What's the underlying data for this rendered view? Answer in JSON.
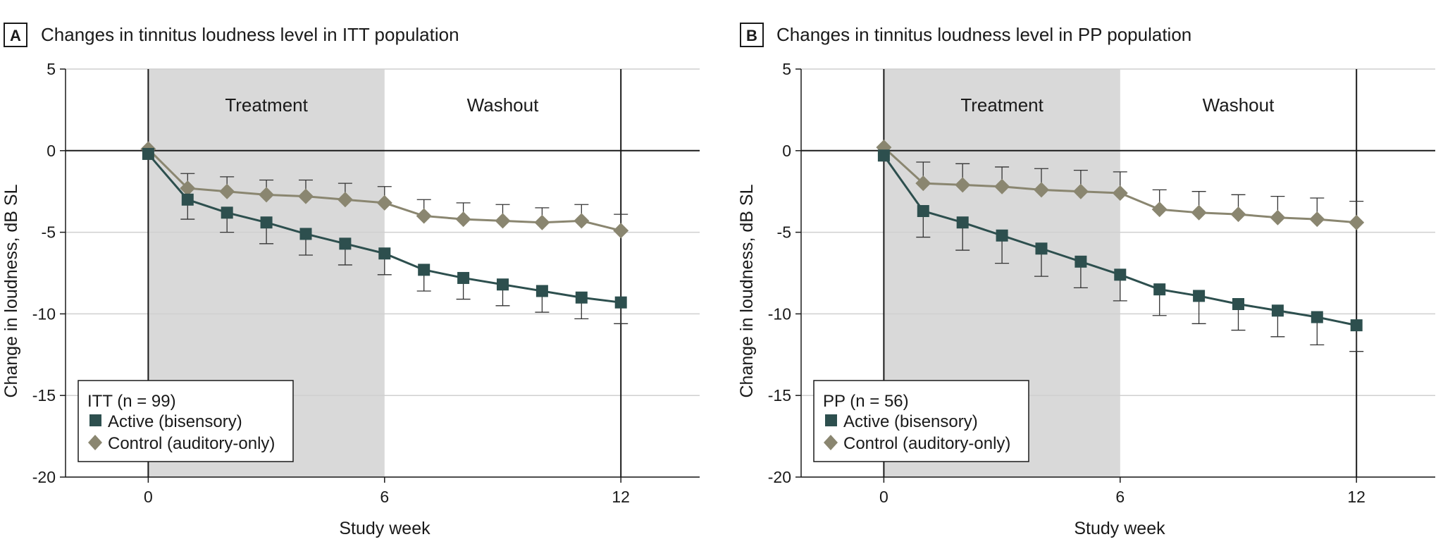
{
  "colors": {
    "active": "#2d4f4e",
    "control": "#8a8670",
    "shade": "#d9d9d9",
    "grid": "#cfcfcf",
    "axis": "#1a1a1a"
  },
  "chart_data": [
    {
      "type": "line",
      "panel_letter": "A",
      "title": "Changes in tinnitus loudness level in ITT population",
      "xlabel": "Study week",
      "ylabel": "Change in loudness, dB SL",
      "xlim": [
        -2.1,
        14
      ],
      "ylim": [
        -20,
        5
      ],
      "xticks": [
        0,
        6,
        12
      ],
      "yticks": [
        5,
        0,
        -5,
        -10,
        -15,
        -20
      ],
      "ytick_labels": [
        "5",
        "0",
        "-5",
        "-10",
        "-15",
        "-20"
      ],
      "regions": [
        {
          "label": "Treatment",
          "x_start": 0,
          "x_end": 6,
          "shaded": true
        },
        {
          "label": "Washout",
          "x_start": 6,
          "x_end": 12,
          "shaded": false
        }
      ],
      "legend": {
        "title": "ITT (n = 99)",
        "position": "bottom-left"
      },
      "series": [
        {
          "name": "Active (bisensory)",
          "marker": "square",
          "x": [
            0,
            1,
            2,
            3,
            4,
            5,
            6,
            7,
            8,
            9,
            10,
            11,
            12
          ],
          "values": [
            -0.2,
            -3.0,
            -3.8,
            -4.4,
            -5.1,
            -5.7,
            -6.3,
            -7.3,
            -7.8,
            -8.2,
            -8.6,
            -9.0,
            -9.3
          ],
          "error_low": [
            null,
            -4.2,
            -5.0,
            -5.7,
            -6.4,
            -7.0,
            -7.6,
            -8.6,
            -9.1,
            -9.5,
            -9.9,
            -10.3,
            -10.6
          ]
        },
        {
          "name": "Control (auditory-only)",
          "marker": "diamond",
          "x": [
            0,
            1,
            2,
            3,
            4,
            5,
            6,
            7,
            8,
            9,
            10,
            11,
            12
          ],
          "values": [
            0.1,
            -2.3,
            -2.5,
            -2.7,
            -2.8,
            -3.0,
            -3.2,
            -4.0,
            -4.2,
            -4.3,
            -4.4,
            -4.3,
            -4.9
          ],
          "error_high": [
            null,
            -1.4,
            -1.6,
            -1.8,
            -1.8,
            -2.0,
            -2.2,
            -3.0,
            -3.2,
            -3.3,
            -3.5,
            -3.3,
            -3.9
          ]
        }
      ]
    },
    {
      "type": "line",
      "panel_letter": "B",
      "title": "Changes in tinnitus loudness level in PP population",
      "xlabel": "Study week",
      "ylabel": "Change in loudness, dB SL",
      "xlim": [
        -2.1,
        14
      ],
      "ylim": [
        -20,
        5
      ],
      "xticks": [
        0,
        6,
        12
      ],
      "yticks": [
        5,
        0,
        -5,
        -10,
        -15,
        -20
      ],
      "ytick_labels": [
        "5",
        "0",
        "-5",
        "-10",
        "-15",
        "-20"
      ],
      "regions": [
        {
          "label": "Treatment",
          "x_start": 0,
          "x_end": 6,
          "shaded": true
        },
        {
          "label": "Washout",
          "x_start": 6,
          "x_end": 12,
          "shaded": false
        }
      ],
      "legend": {
        "title": "PP (n = 56)",
        "position": "bottom-left"
      },
      "series": [
        {
          "name": "Active (bisensory)",
          "marker": "square",
          "x": [
            0,
            1,
            2,
            3,
            4,
            5,
            6,
            7,
            8,
            9,
            10,
            11,
            12
          ],
          "values": [
            -0.3,
            -3.7,
            -4.4,
            -5.2,
            -6.0,
            -6.8,
            -7.6,
            -8.5,
            -8.9,
            -9.4,
            -9.8,
            -10.2,
            -10.7
          ],
          "error_low": [
            null,
            -5.3,
            -6.1,
            -6.9,
            -7.7,
            -8.4,
            -9.2,
            -10.1,
            -10.6,
            -11.0,
            -11.4,
            -11.9,
            -12.3
          ]
        },
        {
          "name": "Control (auditory-only)",
          "marker": "diamond",
          "x": [
            0,
            1,
            2,
            3,
            4,
            5,
            6,
            7,
            8,
            9,
            10,
            11,
            12
          ],
          "values": [
            0.2,
            -2.0,
            -2.1,
            -2.2,
            -2.4,
            -2.5,
            -2.6,
            -3.6,
            -3.8,
            -3.9,
            -4.1,
            -4.2,
            -4.4
          ],
          "error_high": [
            null,
            -0.7,
            -0.8,
            -1.0,
            -1.1,
            -1.2,
            -1.3,
            -2.4,
            -2.5,
            -2.7,
            -2.8,
            -2.9,
            -3.1
          ]
        }
      ]
    }
  ]
}
